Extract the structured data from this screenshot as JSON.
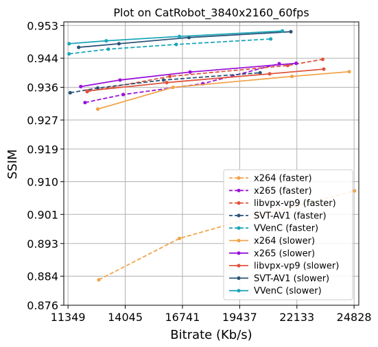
{
  "chart_data": {
    "type": "line",
    "title": "Plot on CatRobot_3840x2160_60fps",
    "xlabel": "Bitrate (Kb/s)",
    "ylabel": "SSIM",
    "xlim": [
      11150,
      25050
    ],
    "ylim": [
      0.876,
      0.954
    ],
    "xticks": [
      11349,
      14045,
      16741,
      19437,
      22133,
      24828
    ],
    "yticks": [
      0.876,
      0.884,
      0.893,
      0.901,
      0.91,
      0.919,
      0.927,
      0.936,
      0.944,
      0.953
    ],
    "ytick_labels": [
      "0.876",
      "0.884",
      "0.893",
      "0.901",
      "0.910",
      "0.919",
      "0.927",
      "0.936",
      "0.944",
      "0.953"
    ],
    "grid": true,
    "legend_position": "lower-right",
    "series": [
      {
        "name": "x264 (faster)",
        "color": "#f0a44a",
        "dash": true,
        "x": [
          12800,
          16600,
          20300,
          24850
        ],
        "y": [
          0.883,
          0.8944,
          0.9005,
          0.9075
        ]
      },
      {
        "name": "x265 (faster)",
        "color": "#9a11d8",
        "dash": true,
        "x": [
          12150,
          13950,
          17700,
          21300
        ],
        "y": [
          0.9318,
          0.934,
          0.937,
          0.9425
        ]
      },
      {
        "name": "libvpx-vp9 (faster)",
        "color": "#e0533c",
        "dash": true,
        "x": [
          12250,
          16150,
          21700,
          23350
        ],
        "y": [
          0.9348,
          0.939,
          0.942,
          0.9437
        ]
      },
      {
        "name": "SVT-AV1 (faster)",
        "color": "#2c5378",
        "dash": true,
        "x": [
          11450,
          12750,
          15850,
          20400
        ],
        "y": [
          0.9345,
          0.9358,
          0.938,
          0.94
        ]
      },
      {
        "name": "VVenC (faster)",
        "color": "#1ba6b8",
        "dash": true,
        "x": [
          11400,
          13250,
          16450,
          20900
        ],
        "y": [
          0.9452,
          0.9465,
          0.9478,
          0.9493
        ]
      },
      {
        "name": "x264 (slower)",
        "color": "#f0a44a",
        "dash": false,
        "x": [
          12750,
          16300,
          21900,
          24600
        ],
        "y": [
          0.93,
          0.936,
          0.939,
          0.9403
        ]
      },
      {
        "name": "x265 (slower)",
        "color": "#9a11d8",
        "dash": false,
        "x": [
          11950,
          13800,
          17100,
          22100
        ],
        "y": [
          0.9362,
          0.938,
          0.9402,
          0.9426
        ]
      },
      {
        "name": "libvpx-vp9 (slower)",
        "color": "#e0533c",
        "dash": false,
        "x": [
          12250,
          16000,
          20850,
          23400
        ],
        "y": [
          0.935,
          0.9373,
          0.9397,
          0.941
        ]
      },
      {
        "name": "SVT-AV1 (slower)",
        "color": "#2c5378",
        "dash": false,
        "x": [
          11850,
          13750,
          17050,
          21850
        ],
        "y": [
          0.947,
          0.948,
          0.9497,
          0.9513
        ]
      },
      {
        "name": "VVenC (slower)",
        "color": "#1ba6b8",
        "dash": false,
        "x": [
          11400,
          13150,
          16600,
          21450
        ],
        "y": [
          0.948,
          0.9488,
          0.95,
          0.9515
        ]
      }
    ]
  }
}
